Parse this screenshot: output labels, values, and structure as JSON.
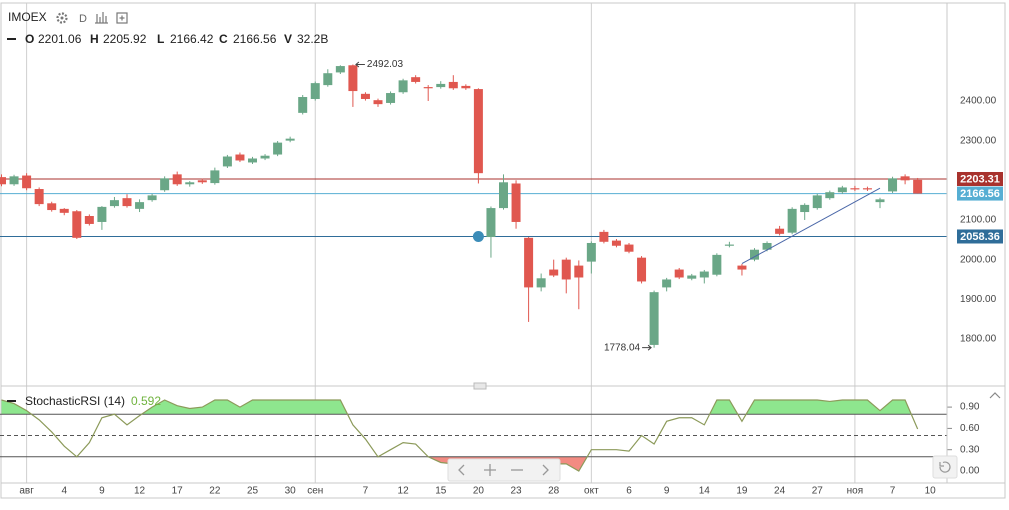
{
  "chart_data": [
    {
      "type": "candlestick",
      "title": "IMOEX",
      "interval": "D",
      "legend_labels": {
        "open": "O",
        "high": "H",
        "low": "L",
        "close": "C",
        "volume": "V"
      },
      "volume": "32.2B",
      "categories": [
        null,
        null,
        "авг",
        null,
        null,
        "4",
        null,
        null,
        "9",
        null,
        null,
        "12",
        null,
        null,
        "17",
        null,
        null,
        "22",
        null,
        null,
        "25",
        null,
        null,
        "30",
        null,
        "сен",
        null,
        null,
        null,
        "7",
        null,
        null,
        "12",
        null,
        null,
        "15",
        null,
        null,
        "20",
        null,
        null,
        "23",
        null,
        null,
        "28",
        null,
        null,
        "окт",
        null,
        null,
        "6",
        null,
        null,
        "9",
        null,
        null,
        "14",
        null,
        null,
        "19",
        null,
        null,
        "24",
        null,
        null,
        "27",
        null,
        null,
        "ноя",
        null,
        null,
        "7",
        null,
        null,
        "10"
      ],
      "open": [
        2208,
        2190,
        2212,
        2178,
        2142,
        2128,
        2122,
        2110,
        2095,
        2135,
        2155,
        2128,
        2150,
        2175,
        2215,
        2190,
        2200,
        2193,
        2235,
        2265,
        2245,
        2255,
        2265,
        2300,
        2370,
        2405,
        2440,
        2472,
        2490,
        2418,
        2402,
        2395,
        2422,
        2460,
        2435,
        2435,
        2448,
        2438,
        2430,
        2057,
        2130,
        2192,
        2055,
        1930,
        1975,
        2000,
        1985,
        1995,
        2070,
        2048,
        2038,
        2005,
        1785,
        1930,
        1975,
        1952,
        1955,
        1962,
        2035,
        1985,
        2000,
        2025,
        2078,
        2068,
        2120,
        2130,
        2155,
        2170,
        2180,
        2180,
        2145,
        2172,
        2210,
        2201.06,
        null
      ],
      "high": [
        2215,
        2214,
        2218,
        2182,
        2146,
        2130,
        2125,
        2114,
        2135,
        2158,
        2165,
        2152,
        2166,
        2210,
        2222,
        2198,
        2204,
        2232,
        2264,
        2270,
        2259,
        2266,
        2299,
        2310,
        2415,
        2449,
        2480,
        2490,
        2492.03,
        2422,
        2406,
        2424,
        2456,
        2465,
        2440,
        2450,
        2465,
        2442,
        2432,
        2134,
        2215,
        2200,
        2057,
        1965,
        2000,
        2005,
        1998,
        2046,
        2075,
        2052,
        2042,
        2009,
        1922,
        1954,
        1979,
        1964,
        1974,
        2016,
        2045,
        1989,
        2029,
        2046,
        2085,
        2132,
        2142,
        2166,
        2174,
        2186,
        2186,
        2184,
        2156,
        2209,
        2215,
        2205.92,
        null
      ],
      "low": [
        2185,
        2186,
        2175,
        2135,
        2121,
        2112,
        2052,
        2086,
        2075,
        2131,
        2131,
        2120,
        2146,
        2171,
        2186,
        2184,
        2191,
        2189,
        2231,
        2246,
        2241,
        2251,
        2261,
        2296,
        2366,
        2401,
        2436,
        2468,
        2385,
        2401,
        2385,
        2391,
        2418,
        2444,
        2400,
        2431,
        2428,
        2428,
        2192,
        2005,
        2126,
        2078,
        1843,
        1920,
        1956,
        1915,
        1875,
        1965,
        2041,
        2031,
        2016,
        1940,
        1778.04,
        1920,
        1951,
        1948,
        1940,
        1958,
        2031,
        1960,
        1996,
        2021,
        2061,
        2064,
        2100,
        2126,
        2151,
        2166,
        2173,
        2173,
        2130,
        2168,
        2190,
        2166.42,
        null
      ],
      "close": [
        2190,
        2210,
        2180,
        2140,
        2125,
        2118,
        2055,
        2090,
        2133,
        2150,
        2135,
        2145,
        2162,
        2205,
        2190,
        2195,
        2195,
        2225,
        2260,
        2250,
        2255,
        2262,
        2295,
        2305,
        2410,
        2445,
        2470,
        2488,
        2425,
        2405,
        2392,
        2420,
        2452,
        2448,
        2432,
        2443,
        2432,
        2432,
        2218,
        2130,
        2195,
        2095,
        1930,
        1953,
        1960,
        1950,
        1955,
        2042,
        2045,
        2035,
        2020,
        1945,
        1918,
        1950,
        1955,
        1960,
        1970,
        2012,
        2038,
        1975,
        2025,
        2042,
        2065,
        2128,
        2138,
        2162,
        2170,
        2182,
        2177,
        2177,
        2152,
        2205,
        2200,
        2166.56,
        null
      ],
      "up_color": "#6aa787",
      "down_color": "#e0574f",
      "ylim": [
        1689,
        2647
      ],
      "yticks": [
        {
          "value": 1800,
          "label": "1800.00"
        },
        {
          "value": 1900,
          "label": "1900.00"
        },
        {
          "value": 2000,
          "label": "2000.00"
        },
        {
          "value": 2100,
          "label": "2100.00"
        },
        {
          "value": 2200,
          "label": "2200.00"
        },
        {
          "value": 2300,
          "label": "2300.00"
        },
        {
          "value": 2400,
          "label": "2400.00"
        }
      ],
      "price_lines": [
        {
          "value": 2203.31,
          "color": "#a8322d"
        },
        {
          "value": 2166.56,
          "color": "#56aed3"
        },
        {
          "value": 2058.36,
          "color": "#2f6d99"
        }
      ],
      "trend_lines": [
        {
          "start": [
            59,
            1990
          ],
          "end": [
            70,
            2180
          ],
          "color": "#4a67a8"
        }
      ],
      "markers": [
        {
          "index": 38,
          "value": 2058.36,
          "color": "#3b8cb8"
        }
      ],
      "grid": false
    },
    {
      "type": "line",
      "title": "StochasticRSI (14)",
      "values": [
        1.0,
        0.95,
        0.85,
        0.72,
        0.55,
        0.35,
        0.2,
        0.4,
        0.75,
        0.8,
        0.65,
        0.78,
        0.9,
        1.0,
        0.92,
        0.88,
        0.9,
        1.0,
        1.0,
        0.9,
        1.0,
        1.0,
        1.0,
        1.0,
        1.0,
        1.0,
        1.0,
        1.0,
        0.65,
        0.45,
        0.2,
        0.3,
        0.4,
        0.38,
        0.2,
        0.12,
        0.1,
        0.1,
        0.1,
        0.1,
        0.1,
        0.1,
        0.1,
        0.1,
        0.1,
        0.1,
        0.0,
        0.3,
        0.3,
        0.3,
        0.28,
        0.5,
        0.38,
        0.7,
        0.75,
        0.75,
        0.65,
        1.0,
        1.0,
        0.7,
        1.0,
        1.0,
        1.0,
        1.0,
        1.0,
        1.0,
        0.98,
        1.0,
        1.0,
        1.0,
        0.85,
        1.0,
        1.0,
        0.592,
        null
      ],
      "color": "#8c9a5a",
      "value_color": "#6fb33d",
      "overbought_color": "#8ee68e",
      "oversold_color": "#f28b82",
      "levels": [
        0.8,
        0.5,
        0.2
      ],
      "ylim": [
        -0.169,
        1.169
      ],
      "yticks": [
        {
          "value": 0,
          "label": "0.00"
        },
        {
          "value": 0.3,
          "label": "0.30"
        },
        {
          "value": 0.6,
          "label": "0.60"
        },
        {
          "value": 0.9,
          "label": "0.90"
        }
      ]
    }
  ]
}
